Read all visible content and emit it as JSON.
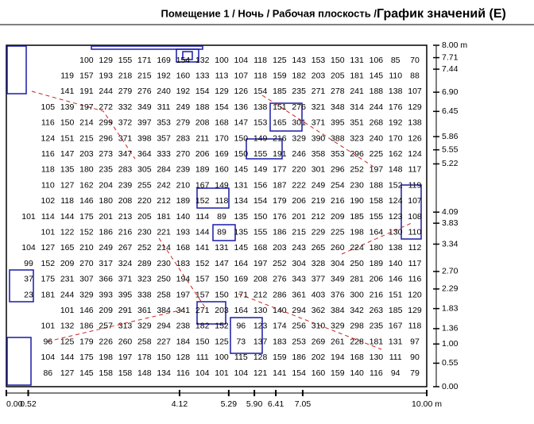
{
  "header": {
    "title": "Помещение 1 / Ночь / Рабочая плоскость / ",
    "subtitle": "График значений (E)"
  },
  "plan": {
    "xlim": [
      0,
      10
    ],
    "ylim": [
      0,
      8
    ],
    "xticks": [
      {
        "value": 0,
        "label": "0.00"
      },
      {
        "value": 0.52,
        "label": "0.52"
      },
      {
        "value": 4.12,
        "label": "4.12"
      },
      {
        "value": 5.29,
        "label": "5.29"
      },
      {
        "value": 5.9,
        "label": "5.90"
      },
      {
        "value": 6.41,
        "label": "6.41"
      },
      {
        "value": 7.05,
        "label": "7.05"
      },
      {
        "value": 10,
        "label": "10.00 m"
      }
    ],
    "yticks": [
      {
        "value": 8,
        "label": "8.00 m"
      },
      {
        "value": 7.71,
        "label": "7.71"
      },
      {
        "value": 7.44,
        "label": "7.44"
      },
      {
        "value": 6.9,
        "label": "6.90"
      },
      {
        "value": 6.45,
        "label": "6.45"
      },
      {
        "value": 5.86,
        "label": "5.86"
      },
      {
        "value": 5.55,
        "label": "5.55"
      },
      {
        "value": 5.22,
        "label": "5.22"
      },
      {
        "value": 4.09,
        "label": "4.09"
      },
      {
        "value": 3.83,
        "label": "3.83"
      },
      {
        "value": 3.34,
        "label": "3.34"
      },
      {
        "value": 2.7,
        "label": "2.70"
      },
      {
        "value": 2.29,
        "label": "2.29"
      },
      {
        "value": 1.83,
        "label": "1.83"
      },
      {
        "value": 1.36,
        "label": "1.36"
      },
      {
        "value": 1,
        "label": "1.00"
      },
      {
        "value": 0.55,
        "label": "0.55"
      },
      {
        "value": 0,
        "label": "0.00"
      }
    ],
    "rows": [
      [
        100,
        129,
        155,
        171,
        169,
        154,
        132,
        100,
        104,
        118,
        125,
        143,
        153,
        150,
        131,
        106,
        85,
        70
      ],
      [
        119,
        157,
        193,
        218,
        215,
        192,
        160,
        133,
        113,
        107,
        118,
        159,
        182,
        203,
        205,
        181,
        145,
        110,
        88
      ],
      [
        141,
        191,
        244,
        279,
        276,
        240,
        192,
        154,
        129,
        126,
        154,
        185,
        235,
        271,
        278,
        241,
        188,
        138,
        107
      ],
      [
        105,
        139,
        197,
        272,
        332,
        349,
        311,
        249,
        188,
        154,
        136,
        138,
        151,
        276,
        321,
        348,
        314,
        244,
        176,
        129
      ],
      [
        116,
        150,
        214,
        299,
        372,
        397,
        353,
        279,
        208,
        168,
        147,
        153,
        165,
        301,
        371,
        395,
        351,
        268,
        192,
        138
      ],
      [
        124,
        151,
        215,
        296,
        371,
        398,
        357,
        283,
        211,
        170,
        150,
        149,
        216,
        329,
        390,
        388,
        323,
        240,
        170,
        126
      ],
      [
        116,
        147,
        203,
        273,
        347,
        364,
        333,
        270,
        206,
        169,
        150,
        155,
        191,
        246,
        358,
        353,
        296,
        225,
        162,
        124
      ],
      [
        118,
        135,
        180,
        235,
        283,
        305,
        284,
        239,
        189,
        160,
        145,
        149,
        177,
        220,
        301,
        296,
        252,
        197,
        148,
        117
      ],
      [
        110,
        127,
        162,
        204,
        239,
        255,
        242,
        210,
        167,
        149,
        131,
        156,
        187,
        222,
        249,
        254,
        230,
        188,
        152,
        119
      ],
      [
        102,
        118,
        146,
        180,
        208,
        220,
        212,
        189,
        152,
        118,
        134,
        154,
        179,
        206,
        219,
        216,
        190,
        158,
        124,
        107
      ],
      [
        101,
        114,
        144,
        175,
        201,
        213,
        205,
        181,
        140,
        114,
        89,
        135,
        150,
        176,
        201,
        212,
        209,
        185,
        155,
        123,
        108
      ],
      [
        101,
        122,
        152,
        186,
        216,
        230,
        221,
        193,
        144,
        89,
        135,
        155,
        186,
        215,
        229,
        225,
        198,
        164,
        130,
        110
      ],
      [
        104,
        127,
        165,
        210,
        249,
        267,
        252,
        214,
        168,
        141,
        131,
        145,
        168,
        203,
        243,
        265,
        260,
        224,
        180,
        138,
        112
      ],
      [
        99,
        152,
        209,
        270,
        317,
        324,
        289,
        230,
        183,
        152,
        147,
        164,
        197,
        252,
        304,
        328,
        304,
        250,
        189,
        140,
        117
      ],
      [
        37,
        175,
        231,
        307,
        366,
        371,
        323,
        250,
        194,
        157,
        150,
        169,
        208,
        276,
        343,
        377,
        349,
        281,
        206,
        146,
        116
      ],
      [
        23,
        181,
        244,
        329,
        393,
        395,
        338,
        258,
        197,
        157,
        150,
        171,
        212,
        286,
        361,
        403,
        376,
        300,
        216,
        151,
        120
      ],
      [
        101,
        146,
        209,
        291,
        361,
        384,
        341,
        271,
        203,
        164,
        130,
        140,
        294,
        362,
        384,
        342,
        263,
        185,
        129
      ],
      [
        101,
        132,
        186,
        257,
        313,
        329,
        294,
        238,
        182,
        152,
        96,
        123,
        174,
        256,
        310,
        329,
        298,
        235,
        167,
        118
      ],
      [
        96,
        125,
        179,
        226,
        260,
        258,
        227,
        184,
        150,
        125,
        73,
        137,
        183,
        253,
        269,
        261,
        228,
        181,
        131,
        97
      ],
      [
        104,
        144,
        175,
        198,
        197,
        178,
        150,
        128,
        111,
        100,
        115,
        128,
        159,
        186,
        202,
        194,
        168,
        130,
        111,
        90
      ],
      [
        86,
        127,
        145,
        158,
        158,
        148,
        134,
        116,
        104,
        101,
        104,
        121,
        141,
        154,
        160,
        159,
        140,
        116,
        94,
        79
      ]
    ]
  }
}
